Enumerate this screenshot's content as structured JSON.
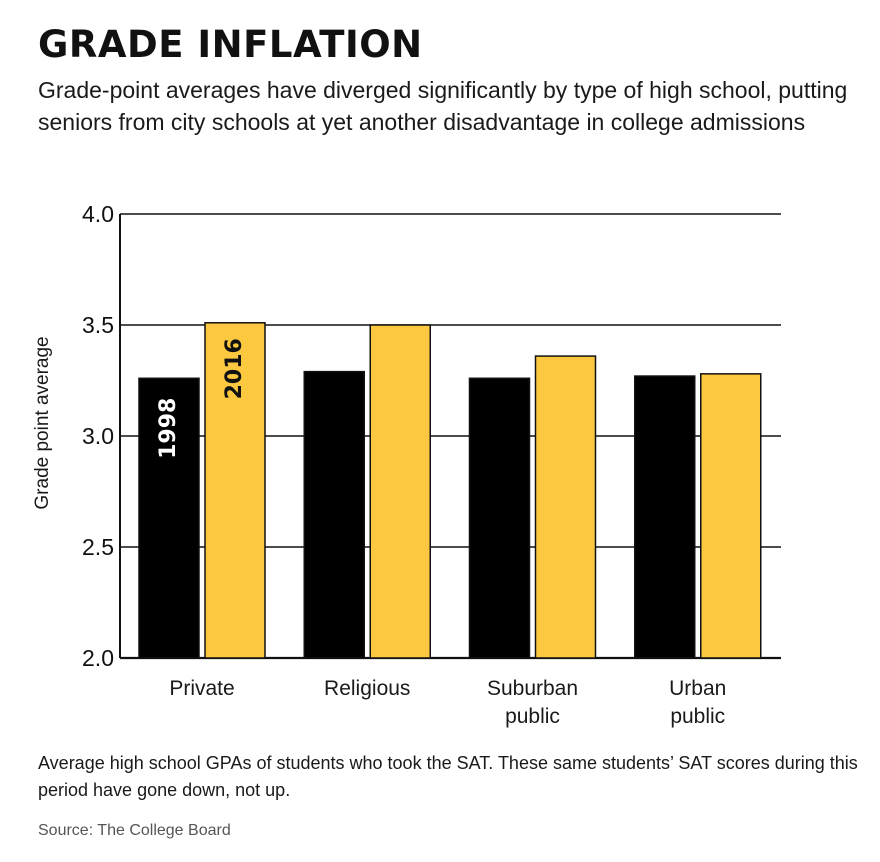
{
  "title": "GRADE INFLATION",
  "subtitle": "Grade-point averages have diverged significantly by type of high school, putting seniors from city schools at yet another disadvantage in college admissions",
  "caption": "Average high school GPAs of students who took the SAT. These same students’ SAT scores during this period have gone down, not up.",
  "source": "Source: The College Board",
  "colors": {
    "series_1998": "#000000",
    "series_2016": "#fcc83f"
  },
  "chart_data": {
    "type": "bar",
    "categories": [
      [
        "Private"
      ],
      [
        "Religious"
      ],
      [
        "Suburban",
        "public"
      ],
      [
        "Urban",
        "public"
      ]
    ],
    "series": [
      {
        "name": "1998",
        "values": [
          3.26,
          3.29,
          3.26,
          3.27
        ]
      },
      {
        "name": "2016",
        "values": [
          3.51,
          3.5,
          3.36,
          3.28
        ]
      }
    ],
    "ylabel": "Grade point average",
    "ylim": [
      2.0,
      4.0
    ],
    "yticks": [
      "2.0",
      "2.5",
      "3.0",
      "3.5",
      "4.0"
    ],
    "grid": true,
    "legend": "in-bar labels on first category"
  }
}
